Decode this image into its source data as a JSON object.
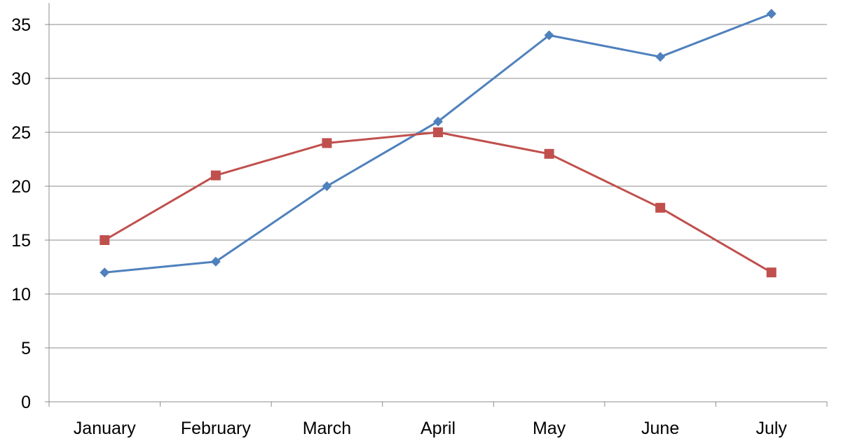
{
  "chart_data": {
    "type": "line",
    "categories": [
      "January",
      "February",
      "March",
      "April",
      "May",
      "June",
      "July"
    ],
    "series": [
      {
        "values": [
          12,
          13,
          20,
          26,
          34,
          32,
          36
        ],
        "color": "#4f81bd",
        "marker": "diamond"
      },
      {
        "values": [
          15,
          21,
          24,
          25,
          23,
          18,
          12
        ],
        "color": "#c0504d",
        "marker": "square"
      }
    ],
    "ylim": [
      0,
      37
    ],
    "yticks": [
      0,
      5,
      10,
      15,
      20,
      25,
      30,
      35
    ],
    "grid": true,
    "legend": "none"
  }
}
